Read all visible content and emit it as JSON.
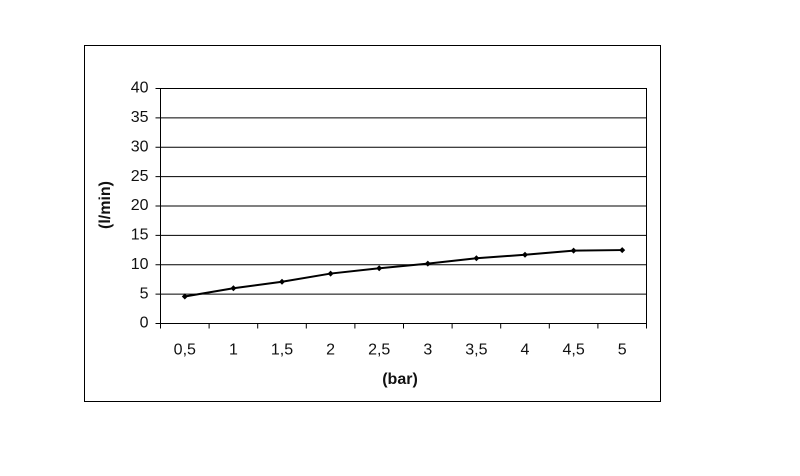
{
  "chart_data": {
    "type": "line",
    "categories": [
      "0,5",
      "1",
      "1,5",
      "2",
      "2,5",
      "3",
      "3,5",
      "4",
      "4,5",
      "5"
    ],
    "values": [
      4.6,
      6.0,
      7.1,
      8.5,
      9.4,
      10.2,
      11.1,
      11.7,
      12.4,
      12.5
    ],
    "color": "#000000",
    "ylim": [
      0,
      40
    ],
    "yticks": [
      0,
      5,
      10,
      15,
      20,
      25,
      30,
      35,
      40
    ],
    "grid": true,
    "x_label": "(bar)",
    "y_label": "(l/min)"
  }
}
